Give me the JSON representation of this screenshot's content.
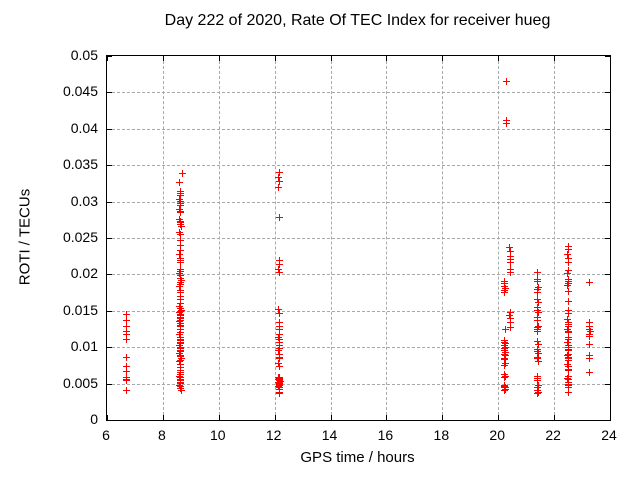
{
  "chart_data": {
    "type": "scatter",
    "title": "Day 222 of 2020, Rate Of TEC Index for receiver hueg",
    "xlabel": "GPS time / hours",
    "ylabel": "ROTI / TECUs",
    "xlim": [
      6,
      24
    ],
    "ylim": [
      0,
      0.05
    ],
    "x_ticks": {
      "values": [
        6,
        8,
        10,
        12,
        14,
        16,
        18,
        20,
        22,
        24
      ],
      "labels": [
        "6",
        "8",
        "10",
        "12",
        "14",
        "16",
        "18",
        "20",
        "22",
        "24"
      ]
    },
    "y_ticks": {
      "values": [
        0,
        0.005,
        0.01,
        0.015,
        0.02,
        0.025,
        0.03,
        0.035,
        0.04,
        0.045,
        0.05
      ],
      "labels": [
        "0",
        "0.005",
        "0.01",
        "0.015",
        "0.02",
        "0.025",
        "0.03",
        "0.035",
        "0.04",
        "0.045",
        "0.05"
      ]
    },
    "grid": true,
    "legend": "none",
    "marker": "plus",
    "marker_color": "#ff0000",
    "grid_color": "#a9a9a9",
    "frame_color": "#000000",
    "background_color": "#ffffff",
    "text_color": "#000000",
    "series": [
      {
        "name": "ROTI",
        "points": [
          [
            6.7,
            0.0145
          ],
          [
            6.7,
            0.0136
          ],
          [
            6.7,
            0.0129
          ],
          [
            6.7,
            0.0122
          ],
          [
            6.71,
            0.0118
          ],
          [
            6.7,
            0.0111
          ],
          [
            6.71,
            0.0086
          ],
          [
            6.7,
            0.0074
          ],
          [
            6.7,
            0.0067
          ],
          [
            6.69,
            0.0058
          ],
          [
            6.71,
            0.0056
          ],
          [
            6.7,
            0.0055
          ],
          [
            6.7,
            0.0054
          ],
          [
            6.7,
            0.004
          ],
          [
            8.71,
            0.0338
          ],
          [
            8.6,
            0.0326
          ],
          [
            8.62,
            0.0314
          ],
          [
            8.63,
            0.0311
          ],
          [
            8.62,
            0.0308
          ],
          [
            8.61,
            0.0303
          ],
          [
            8.63,
            0.03
          ],
          [
            8.62,
            0.0297
          ],
          [
            8.64,
            0.0295
          ],
          [
            8.6,
            0.0289
          ],
          [
            8.62,
            0.0287
          ],
          [
            8.63,
            0.0285
          ],
          [
            8.61,
            0.0276
          ],
          [
            8.62,
            0.0273
          ],
          [
            8.64,
            0.0271
          ],
          [
            8.62,
            0.0268
          ],
          [
            8.66,
            0.0266
          ],
          [
            8.61,
            0.0258
          ],
          [
            8.63,
            0.0255
          ],
          [
            8.62,
            0.0247
          ],
          [
            8.63,
            0.024
          ],
          [
            8.62,
            0.0233
          ],
          [
            8.6,
            0.0228
          ],
          [
            8.64,
            0.0222
          ],
          [
            8.62,
            0.0219
          ],
          [
            8.63,
            0.0216
          ],
          [
            8.62,
            0.0207
          ],
          [
            8.64,
            0.0204
          ],
          [
            8.61,
            0.0201
          ],
          [
            8.63,
            0.0198
          ],
          [
            8.62,
            0.0195
          ],
          [
            8.65,
            0.0192
          ],
          [
            8.62,
            0.0189
          ],
          [
            8.63,
            0.0186
          ],
          [
            8.61,
            0.0183
          ],
          [
            8.62,
            0.0178
          ],
          [
            8.64,
            0.0175
          ],
          [
            8.62,
            0.017
          ],
          [
            8.63,
            0.0165
          ],
          [
            8.62,
            0.016
          ],
          [
            8.6,
            0.0156
          ],
          [
            8.63,
            0.0153
          ],
          [
            8.65,
            0.0151
          ],
          [
            8.62,
            0.0149
          ],
          [
            8.61,
            0.0147
          ],
          [
            8.63,
            0.0145
          ],
          [
            8.62,
            0.0143
          ],
          [
            8.64,
            0.0141
          ],
          [
            8.62,
            0.0139
          ],
          [
            8.63,
            0.0137
          ],
          [
            8.61,
            0.0135
          ],
          [
            8.62,
            0.0132
          ],
          [
            8.64,
            0.013
          ],
          [
            8.62,
            0.0128
          ],
          [
            8.63,
            0.0125
          ],
          [
            8.62,
            0.012
          ],
          [
            8.61,
            0.0117
          ],
          [
            8.63,
            0.0114
          ],
          [
            8.62,
            0.0111
          ],
          [
            8.64,
            0.0109
          ],
          [
            8.62,
            0.0107
          ],
          [
            8.63,
            0.0105
          ],
          [
            8.61,
            0.0102
          ],
          [
            8.62,
            0.01
          ],
          [
            8.64,
            0.0098
          ],
          [
            8.62,
            0.0096
          ],
          [
            8.63,
            0.0094
          ],
          [
            8.6,
            0.0091
          ],
          [
            8.62,
            0.0089
          ],
          [
            8.63,
            0.0087
          ],
          [
            8.65,
            0.0085
          ],
          [
            8.62,
            0.0082
          ],
          [
            8.61,
            0.008
          ],
          [
            8.63,
            0.0076
          ],
          [
            8.62,
            0.0072
          ],
          [
            8.64,
            0.0068
          ],
          [
            8.62,
            0.0065
          ],
          [
            8.63,
            0.0062
          ],
          [
            8.61,
            0.006
          ],
          [
            8.62,
            0.0058
          ],
          [
            8.64,
            0.0056
          ],
          [
            8.62,
            0.0054
          ],
          [
            8.63,
            0.0052
          ],
          [
            8.62,
            0.005
          ],
          [
            8.6,
            0.0048
          ],
          [
            8.63,
            0.0046
          ],
          [
            8.62,
            0.0043
          ],
          [
            8.65,
            0.0041
          ],
          [
            12.16,
            0.034
          ],
          [
            12.14,
            0.0333
          ],
          [
            12.17,
            0.0327
          ],
          [
            12.15,
            0.0319
          ],
          [
            12.18,
            0.0278
          ],
          [
            12.16,
            0.0219
          ],
          [
            12.17,
            0.0214
          ],
          [
            12.15,
            0.0207
          ],
          [
            12.16,
            0.0202
          ],
          [
            12.15,
            0.0152
          ],
          [
            12.17,
            0.0146
          ],
          [
            12.16,
            0.0134
          ],
          [
            12.18,
            0.0128
          ],
          [
            12.16,
            0.0125
          ],
          [
            12.17,
            0.0118
          ],
          [
            12.15,
            0.0114
          ],
          [
            12.16,
            0.011
          ],
          [
            12.18,
            0.0107
          ],
          [
            12.16,
            0.0102
          ],
          [
            12.17,
            0.0098
          ],
          [
            12.15,
            0.0095
          ],
          [
            12.16,
            0.009
          ],
          [
            12.17,
            0.0086
          ],
          [
            12.16,
            0.0084
          ],
          [
            12.15,
            0.0078
          ],
          [
            12.17,
            0.0074
          ],
          [
            12.14,
            0.0059
          ],
          [
            12.17,
            0.0058
          ],
          [
            12.19,
            0.0057
          ],
          [
            12.15,
            0.0056
          ],
          [
            12.18,
            0.0055
          ],
          [
            12.16,
            0.0054
          ],
          [
            12.2,
            0.0053
          ],
          [
            12.17,
            0.0052
          ],
          [
            12.15,
            0.0051
          ],
          [
            12.18,
            0.005
          ],
          [
            12.16,
            0.0049
          ],
          [
            12.19,
            0.0048
          ],
          [
            12.17,
            0.0047
          ],
          [
            12.15,
            0.0046
          ],
          [
            12.18,
            0.0044
          ],
          [
            12.16,
            0.0042
          ],
          [
            12.17,
            0.0038
          ],
          [
            12.16,
            0.0036
          ],
          [
            20.28,
            0.0465
          ],
          [
            20.29,
            0.0412
          ],
          [
            20.29,
            0.0407
          ],
          [
            20.22,
            0.019
          ],
          [
            20.24,
            0.0187
          ],
          [
            20.23,
            0.0184
          ],
          [
            20.25,
            0.0181
          ],
          [
            20.23,
            0.0178
          ],
          [
            20.24,
            0.0175
          ],
          [
            20.25,
            0.0125
          ],
          [
            20.22,
            0.0109
          ],
          [
            20.24,
            0.0107
          ],
          [
            20.26,
            0.0105
          ],
          [
            20.23,
            0.0103
          ],
          [
            20.25,
            0.01
          ],
          [
            20.22,
            0.0098
          ],
          [
            20.24,
            0.0096
          ],
          [
            20.26,
            0.0093
          ],
          [
            20.23,
            0.009
          ],
          [
            20.25,
            0.0088
          ],
          [
            20.24,
            0.0085
          ],
          [
            20.22,
            0.0083
          ],
          [
            20.25,
            0.0078
          ],
          [
            20.23,
            0.0075
          ],
          [
            20.24,
            0.0062
          ],
          [
            20.26,
            0.006
          ],
          [
            20.23,
            0.0058
          ],
          [
            20.24,
            0.0048
          ],
          [
            20.22,
            0.0046
          ],
          [
            20.25,
            0.0045
          ],
          [
            20.23,
            0.0044
          ],
          [
            20.26,
            0.0042
          ],
          [
            20.24,
            0.004
          ],
          [
            20.42,
            0.0237
          ],
          [
            20.45,
            0.0232
          ],
          [
            20.43,
            0.0225
          ],
          [
            20.44,
            0.0221
          ],
          [
            20.43,
            0.0216
          ],
          [
            20.45,
            0.0207
          ],
          [
            20.43,
            0.0203
          ],
          [
            20.44,
            0.0147
          ],
          [
            20.42,
            0.0144
          ],
          [
            20.45,
            0.014
          ],
          [
            20.43,
            0.0134
          ],
          [
            20.44,
            0.0127
          ],
          [
            21.4,
            0.0202
          ],
          [
            21.42,
            0.0193
          ],
          [
            21.41,
            0.019
          ],
          [
            21.43,
            0.0182
          ],
          [
            21.4,
            0.0179
          ],
          [
            21.42,
            0.0175
          ],
          [
            21.41,
            0.0166
          ],
          [
            21.43,
            0.0162
          ],
          [
            21.42,
            0.0154
          ],
          [
            21.4,
            0.015
          ],
          [
            21.43,
            0.0147
          ],
          [
            21.41,
            0.0141
          ],
          [
            21.42,
            0.0137
          ],
          [
            21.44,
            0.0129
          ],
          [
            21.41,
            0.0127
          ],
          [
            21.42,
            0.0124
          ],
          [
            21.4,
            0.0122
          ],
          [
            21.42,
            0.0108
          ],
          [
            21.43,
            0.0104
          ],
          [
            21.41,
            0.0097
          ],
          [
            21.42,
            0.0094
          ],
          [
            21.44,
            0.0092
          ],
          [
            21.41,
            0.0086
          ],
          [
            21.42,
            0.0084
          ],
          [
            21.43,
            0.0081
          ],
          [
            21.4,
            0.006
          ],
          [
            21.42,
            0.0057
          ],
          [
            21.41,
            0.0054
          ],
          [
            21.43,
            0.0047
          ],
          [
            21.42,
            0.0044
          ],
          [
            21.4,
            0.0041
          ],
          [
            21.43,
            0.0038
          ],
          [
            21.42,
            0.0036
          ],
          [
            22.5,
            0.0239
          ],
          [
            22.52,
            0.0234
          ],
          [
            22.49,
            0.0228
          ],
          [
            22.51,
            0.0222
          ],
          [
            22.5,
            0.0216
          ],
          [
            22.52,
            0.0205
          ],
          [
            22.49,
            0.0201
          ],
          [
            22.51,
            0.0193
          ],
          [
            22.5,
            0.019
          ],
          [
            22.53,
            0.0187
          ],
          [
            22.49,
            0.0185
          ],
          [
            22.51,
            0.0177
          ],
          [
            22.5,
            0.0163
          ],
          [
            22.52,
            0.015
          ],
          [
            22.5,
            0.0146
          ],
          [
            22.49,
            0.0138
          ],
          [
            22.51,
            0.0134
          ],
          [
            22.5,
            0.0131
          ],
          [
            22.52,
            0.0128
          ],
          [
            22.49,
            0.0125
          ],
          [
            22.51,
            0.0122
          ],
          [
            22.5,
            0.012
          ],
          [
            22.52,
            0.0113
          ],
          [
            22.5,
            0.011
          ],
          [
            22.49,
            0.0106
          ],
          [
            22.51,
            0.0102
          ],
          [
            22.5,
            0.0099
          ],
          [
            22.53,
            0.0097
          ],
          [
            22.5,
            0.0095
          ],
          [
            22.51,
            0.009
          ],
          [
            22.49,
            0.0088
          ],
          [
            22.52,
            0.0086
          ],
          [
            22.5,
            0.0084
          ],
          [
            22.51,
            0.0082
          ],
          [
            22.49,
            0.0076
          ],
          [
            22.51,
            0.0073
          ],
          [
            22.5,
            0.007
          ],
          [
            22.52,
            0.0068
          ],
          [
            22.5,
            0.006
          ],
          [
            22.49,
            0.0057
          ],
          [
            22.51,
            0.0055
          ],
          [
            22.5,
            0.0052
          ],
          [
            22.52,
            0.0049
          ],
          [
            22.5,
            0.0047
          ],
          [
            22.51,
            0.0044
          ],
          [
            22.5,
            0.0038
          ],
          [
            23.27,
            0.0189
          ],
          [
            23.25,
            0.0134
          ],
          [
            23.28,
            0.0129
          ],
          [
            23.26,
            0.0125
          ],
          [
            23.29,
            0.0122
          ],
          [
            23.27,
            0.0118
          ],
          [
            23.26,
            0.0115
          ],
          [
            23.28,
            0.0104
          ],
          [
            23.26,
            0.0088
          ],
          [
            23.28,
            0.0085
          ],
          [
            23.27,
            0.0065
          ]
        ]
      }
    ]
  }
}
